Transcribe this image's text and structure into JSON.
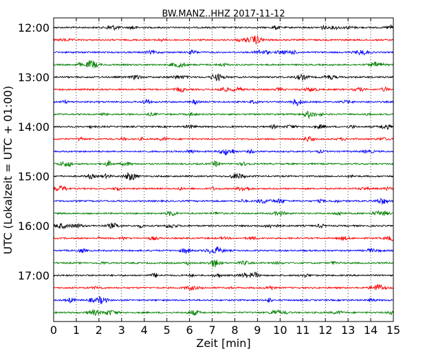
{
  "chart_data": {
    "type": "line",
    "subtype": "seismogram-dayplot",
    "title": "BW.MANZ..HHZ 2017-11-12",
    "xlabel": "Zeit  [min]",
    "ylabel": "UTC (Lokalzeit = UTC + 01:00)",
    "xlim": [
      0,
      15
    ],
    "x_ticks": [
      0,
      1,
      2,
      3,
      4,
      5,
      6,
      7,
      8,
      9,
      10,
      11,
      12,
      13,
      14,
      15
    ],
    "x_tick_labels": [
      "0",
      "1",
      "2",
      "3",
      "4",
      "5",
      "6",
      "7",
      "8",
      "9",
      "10",
      "11",
      "12",
      "13",
      "14",
      "15"
    ],
    "y_tick_labels": [
      "12:00",
      "13:00",
      "14:00",
      "15:00",
      "16:00",
      "17:00"
    ],
    "vertical_grid": "dotted",
    "trace_interval_min": 15,
    "trace_colors": [
      "#000000",
      "#ff0000",
      "#0000ff",
      "#008000"
    ],
    "traces": [
      {
        "start": "12:00"
      },
      {
        "start": "12:15"
      },
      {
        "start": "12:30"
      },
      {
        "start": "12:45"
      },
      {
        "start": "13:00"
      },
      {
        "start": "13:15"
      },
      {
        "start": "13:30"
      },
      {
        "start": "13:45"
      },
      {
        "start": "14:00"
      },
      {
        "start": "14:15"
      },
      {
        "start": "14:30"
      },
      {
        "start": "14:45"
      },
      {
        "start": "15:00"
      },
      {
        "start": "15:15"
      },
      {
        "start": "15:30"
      },
      {
        "start": "15:45"
      },
      {
        "start": "16:00"
      },
      {
        "start": "16:15"
      },
      {
        "start": "16:30"
      },
      {
        "start": "16:45"
      },
      {
        "start": "17:00"
      },
      {
        "start": "17:15"
      },
      {
        "start": "17:30"
      },
      {
        "start": "17:45"
      }
    ]
  }
}
